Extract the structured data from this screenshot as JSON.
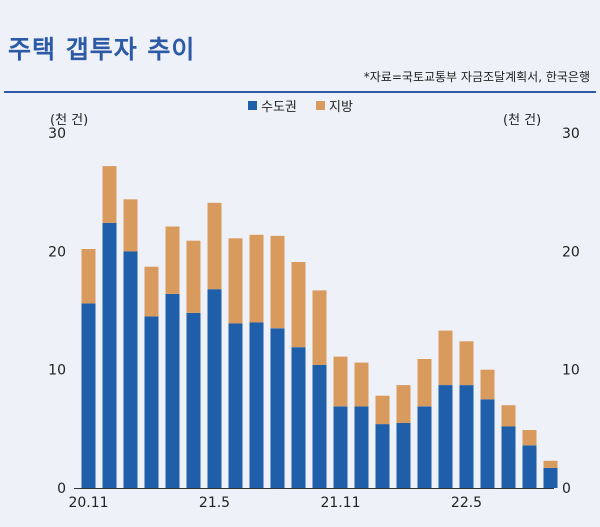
{
  "header": {
    "title": "주택 갭투자 추이",
    "source": "*자료=국토교통부 자금조달계획서, 한국은행"
  },
  "colors": {
    "title": "#2c5aa6",
    "metro": "#1f5ea8",
    "region": "#d99a5e",
    "text": "#222222"
  },
  "chart_data": {
    "type": "bar",
    "stacked": true,
    "unit_left": "(천 건)",
    "unit_right": "(천 건)",
    "ylim": [
      0,
      30
    ],
    "yticks": [
      0,
      10,
      20,
      30
    ],
    "grid": false,
    "legend_position": "top-center",
    "x_tick_labels": [
      "20.11",
      "21.5",
      "21.11",
      "22.5"
    ],
    "x_tick_indices": [
      0,
      6,
      12,
      18
    ],
    "series": [
      {
        "name": "수도권",
        "color": "#1f5ea8",
        "values": [
          15.6,
          22.4,
          20.0,
          14.5,
          16.4,
          14.8,
          16.8,
          13.9,
          14.0,
          13.5,
          11.9,
          10.4,
          6.9,
          6.9,
          5.4,
          5.5,
          6.9,
          8.7,
          8.7,
          7.5,
          5.2,
          3.6,
          1.7
        ]
      },
      {
        "name": "지방",
        "color": "#d99a5e",
        "values": [
          4.6,
          4.8,
          4.4,
          4.2,
          5.7,
          6.1,
          7.3,
          7.2,
          7.4,
          7.8,
          7.2,
          6.3,
          4.2,
          3.7,
          2.4,
          3.2,
          4.0,
          4.6,
          3.7,
          2.5,
          1.8,
          1.3,
          0.6
        ]
      }
    ]
  }
}
